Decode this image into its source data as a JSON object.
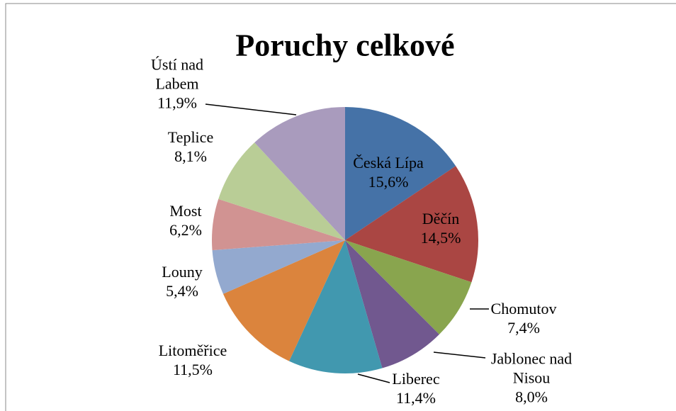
{
  "chart_data": {
    "type": "pie",
    "title": "Poruchy celkové",
    "categories": [
      "Česká Lípa",
      "Děčín",
      "Chomutov",
      "Jablonec nad Nisou",
      "Liberec",
      "Litoměřice",
      "Louny",
      "Most",
      "Teplice",
      "Ústí nad Labem"
    ],
    "values": [
      15.6,
      14.5,
      7.4,
      8.0,
      11.4,
      11.5,
      5.4,
      6.2,
      8.1,
      11.9
    ],
    "value_labels": [
      "15,6%",
      "14,5%",
      "7,4%",
      "8,0%",
      "11,4%",
      "11,5%",
      "5,4%",
      "6,2%",
      "8,1%",
      "11,9%"
    ],
    "colors": [
      "#4572a7",
      "#aa4643",
      "#89a54e",
      "#71588f",
      "#4198af",
      "#db843d",
      "#93a9cf",
      "#d19392",
      "#b9cd96",
      "#a99bbd"
    ]
  }
}
